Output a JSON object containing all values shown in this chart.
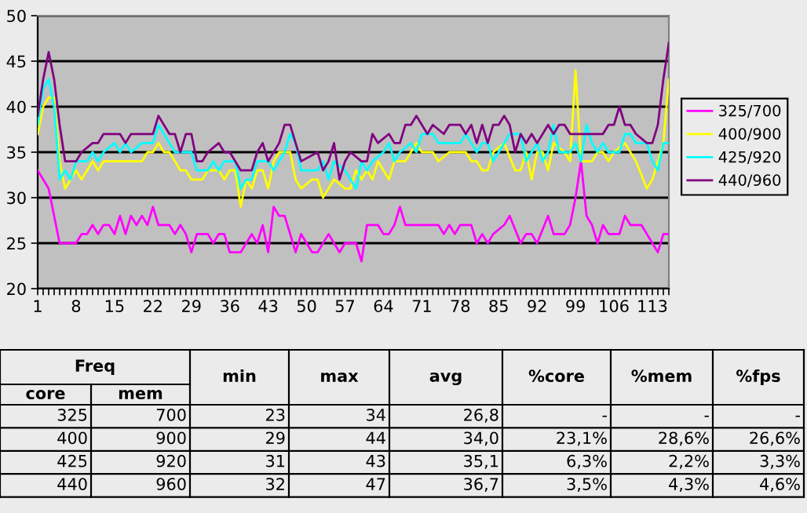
{
  "chart_data": {
    "type": "line",
    "xlim": [
      1,
      116
    ],
    "ylim": [
      20,
      50
    ],
    "yticks": [
      20,
      25,
      30,
      35,
      40,
      45,
      50
    ],
    "xticks": [
      1,
      {
        "value": 2,
        "label": null
      },
      {
        "value": 3,
        "label": null
      },
      {
        "value": 4,
        "label": null
      },
      {
        "value": 5,
        "label": null
      },
      {
        "value": 6,
        "label": null
      },
      {
        "value": 7,
        "label": null
      },
      8,
      {
        "value": 9,
        "label": null
      },
      {
        "value": 10,
        "label": null
      },
      {
        "value": 11,
        "label": null
      },
      {
        "value": 12,
        "label": null
      },
      {
        "value": 13,
        "label": null
      },
      {
        "value": 14,
        "label": null
      },
      15,
      {
        "value": 16,
        "label": null
      },
      {
        "value": 17,
        "label": null
      },
      {
        "value": 18,
        "label": null
      },
      {
        "value": 19,
        "label": null
      },
      {
        "value": 20,
        "label": null
      },
      {
        "value": 21,
        "label": null
      },
      22,
      {
        "value": 23,
        "label": null
      },
      {
        "value": 24,
        "label": null
      },
      {
        "value": 25,
        "label": null
      },
      {
        "value": 26,
        "label": null
      },
      {
        "value": 27,
        "label": null
      },
      {
        "value": 28,
        "label": null
      },
      29,
      {
        "value": 30,
        "label": null
      },
      {
        "value": 31,
        "label": null
      },
      {
        "value": 32,
        "label": null
      },
      {
        "value": 33,
        "label": null
      },
      {
        "value": 34,
        "label": null
      },
      {
        "value": 35,
        "label": null
      },
      36,
      {
        "value": 37,
        "label": null
      },
      {
        "value": 38,
        "label": null
      },
      {
        "value": 39,
        "label": null
      },
      {
        "value": 40,
        "label": null
      },
      {
        "value": 41,
        "label": null
      },
      {
        "value": 42,
        "label": null
      },
      43,
      {
        "value": 44,
        "label": null
      },
      {
        "value": 45,
        "label": null
      },
      {
        "value": 46,
        "label": null
      },
      {
        "value": 47,
        "label": null
      },
      {
        "value": 48,
        "label": null
      },
      {
        "value": 49,
        "label": null
      },
      50,
      {
        "value": 51,
        "label": null
      },
      {
        "value": 52,
        "label": null
      },
      {
        "value": 53,
        "label": null
      },
      {
        "value": 54,
        "label": null
      },
      {
        "value": 55,
        "label": null
      },
      {
        "value": 56,
        "label": null
      },
      57,
      {
        "value": 58,
        "label": null
      },
      {
        "value": 59,
        "label": null
      },
      {
        "value": 60,
        "label": null
      },
      {
        "value": 61,
        "label": null
      },
      {
        "value": 62,
        "label": null
      },
      {
        "value": 63,
        "label": null
      },
      64,
      {
        "value": 65,
        "label": null
      },
      {
        "value": 66,
        "label": null
      },
      {
        "value": 67,
        "label": null
      },
      {
        "value": 68,
        "label": null
      },
      {
        "value": 69,
        "label": null
      },
      {
        "value": 70,
        "label": null
      },
      71,
      {
        "value": 72,
        "label": null
      },
      {
        "value": 73,
        "label": null
      },
      {
        "value": 74,
        "label": null
      },
      {
        "value": 75,
        "label": null
      },
      {
        "value": 76,
        "label": null
      },
      {
        "value": 77,
        "label": null
      },
      78,
      {
        "value": 79,
        "label": null
      },
      {
        "value": 80,
        "label": null
      },
      {
        "value": 81,
        "label": null
      },
      {
        "value": 82,
        "label": null
      },
      {
        "value": 83,
        "label": null
      },
      {
        "value": 84,
        "label": null
      },
      85,
      {
        "value": 86,
        "label": null
      },
      {
        "value": 87,
        "label": null
      },
      {
        "value": 88,
        "label": null
      },
      {
        "value": 89,
        "label": null
      },
      {
        "value": 90,
        "label": null
      },
      {
        "value": 91,
        "label": null
      },
      92,
      {
        "value": 93,
        "label": null
      },
      {
        "value": 94,
        "label": null
      },
      {
        "value": 95,
        "label": null
      },
      {
        "value": 96,
        "label": null
      },
      {
        "value": 97,
        "label": null
      },
      {
        "value": 98,
        "label": null
      },
      99,
      {
        "value": 100,
        "label": null
      },
      {
        "value": 101,
        "label": null
      },
      {
        "value": 102,
        "label": null
      },
      {
        "value": 103,
        "label": null
      },
      {
        "value": 104,
        "label": null
      },
      {
        "value": 105,
        "label": null
      },
      106,
      {
        "value": 107,
        "label": null
      },
      {
        "value": 108,
        "label": null
      },
      {
        "value": 109,
        "label": null
      },
      {
        "value": 110,
        "label": null
      },
      {
        "value": 111,
        "label": null
      },
      {
        "value": 112,
        "label": null
      },
      113,
      {
        "value": 114,
        "label": null
      },
      {
        "value": 115,
        "label": null
      },
      {
        "value": 116,
        "label": null
      }
    ],
    "grid": "y",
    "legend": "right",
    "series": [
      {
        "name": "325/700",
        "color": "#ff00ff",
        "x": [
          1,
          2,
          3,
          4,
          5,
          8,
          9,
          10,
          11,
          12,
          13,
          14,
          15,
          16,
          17,
          18,
          19,
          20,
          21,
          22,
          23,
          25,
          26,
          27,
          28,
          29,
          30,
          32,
          33,
          34,
          35,
          36,
          38,
          39,
          40,
          41,
          42,
          43,
          44,
          45,
          46,
          47,
          48,
          49,
          50,
          51,
          52,
          54,
          55,
          56,
          57,
          59,
          60,
          61,
          63,
          64,
          65,
          66,
          67,
          68,
          70,
          74,
          75,
          76,
          77,
          78,
          80,
          81,
          82,
          83,
          84,
          86,
          87,
          89,
          90,
          91,
          92,
          94,
          95,
          97,
          98,
          99,
          100,
          101,
          102,
          103,
          104,
          105,
          107,
          108,
          109,
          111,
          112,
          113,
          114,
          115,
          116
        ],
        "values": [
          33,
          32,
          31,
          28,
          25,
          25,
          26,
          26,
          27,
          26,
          27,
          27,
          26,
          28,
          26,
          28,
          27,
          28,
          27,
          29,
          27,
          27,
          26,
          27,
          26,
          24,
          26,
          26,
          25,
          26,
          26,
          24,
          24,
          25,
          26,
          25,
          27,
          24,
          29,
          28,
          28,
          26,
          24,
          26,
          25,
          24,
          24,
          26,
          25,
          24,
          25,
          25,
          23,
          27,
          27,
          26,
          26,
          27,
          29,
          27,
          27,
          27,
          26,
          27,
          26,
          27,
          27,
          25,
          26,
          25,
          26,
          27,
          28,
          25,
          26,
          26,
          25,
          28,
          26,
          26,
          27,
          30,
          34,
          28,
          27,
          25,
          27,
          26,
          26,
          28,
          27,
          27,
          26,
          25,
          24,
          26,
          26
        ]
      },
      {
        "name": "400/900",
        "color": "#ffff00",
        "x": [
          1,
          2,
          3,
          4,
          5,
          6,
          7,
          8,
          9,
          10,
          11,
          12,
          13,
          20,
          21,
          22,
          23,
          24,
          25,
          26,
          27,
          28,
          29,
          31,
          32,
          34,
          35,
          36,
          37,
          38,
          39,
          40,
          41,
          42,
          43,
          44,
          45,
          46,
          47,
          48,
          49,
          51,
          52,
          53,
          54,
          55,
          57,
          58,
          59,
          60,
          61,
          62,
          63,
          65,
          66,
          68,
          69,
          70,
          71,
          73,
          74,
          76,
          79,
          80,
          81,
          82,
          83,
          84,
          86,
          88,
          89,
          90,
          91,
          92,
          93,
          94,
          95,
          97,
          98,
          99,
          100,
          102,
          103,
          104,
          105,
          106,
          108,
          109,
          110,
          112,
          113,
          114,
          115,
          116
        ],
        "values": [
          37,
          40,
          41,
          41,
          34,
          31,
          32,
          33,
          32,
          33,
          34,
          33,
          34,
          34,
          35,
          35,
          36,
          35,
          35,
          34,
          33,
          33,
          32,
          32,
          33,
          33,
          32,
          33,
          33,
          29,
          32,
          31,
          33,
          33,
          31,
          34,
          35,
          35,
          35,
          32,
          31,
          32,
          32,
          30,
          31,
          32,
          31,
          31,
          33,
          32,
          33,
          32,
          34,
          32,
          34,
          34,
          35,
          36,
          35,
          35,
          34,
          35,
          35,
          34,
          34,
          33,
          33,
          35,
          36,
          33,
          33,
          35,
          32,
          35,
          35,
          33,
          36,
          35,
          34,
          44,
          34,
          34,
          35,
          35,
          34,
          35,
          36,
          35,
          34,
          31,
          32,
          34,
          36,
          43
        ]
      },
      {
        "name": "425/920",
        "color": "#00ffff",
        "x": [
          1,
          2,
          3,
          4,
          5,
          6,
          7,
          8,
          10,
          11,
          12,
          13,
          15,
          16,
          17,
          18,
          20,
          22,
          23,
          24,
          25,
          26,
          29,
          30,
          32,
          33,
          34,
          35,
          37,
          38,
          39,
          40,
          41,
          43,
          44,
          45,
          46,
          47,
          48,
          49,
          51,
          52,
          53,
          54,
          55,
          57,
          59,
          60,
          61,
          62,
          64,
          65,
          66,
          67,
          69,
          70,
          71,
          72,
          73,
          74,
          78,
          79,
          80,
          81,
          82,
          83,
          84,
          85,
          87,
          89,
          90,
          91,
          92,
          93,
          94,
          95,
          96,
          98,
          99,
          100,
          101,
          102,
          103,
          104,
          105,
          107,
          108,
          109,
          110,
          112,
          113,
          114,
          115,
          116
        ],
        "values": [
          38,
          42,
          43,
          40,
          32,
          33,
          32,
          34,
          34,
          35,
          34,
          35,
          36,
          35,
          36,
          35,
          36,
          36,
          38,
          37,
          36,
          35,
          35,
          33,
          33,
          34,
          33,
          34,
          34,
          31,
          32,
          32,
          34,
          34,
          33,
          34,
          35,
          37,
          36,
          33,
          33,
          33,
          34,
          32,
          34,
          33,
          31,
          34,
          33,
          34,
          35,
          36,
          34,
          35,
          36,
          35,
          37,
          37,
          37,
          36,
          36,
          37,
          36,
          35,
          36,
          36,
          34,
          35,
          37,
          37,
          34,
          35,
          36,
          34,
          35,
          38,
          35,
          35,
          36,
          34,
          38,
          36,
          35,
          36,
          35,
          35,
          37,
          37,
          36,
          36,
          34,
          33,
          36,
          36
        ]
      },
      {
        "name": "440/960",
        "color": "#800080",
        "x": [
          1,
          2,
          3,
          4,
          5,
          6,
          8,
          9,
          11,
          12,
          13,
          16,
          17,
          18,
          22,
          23,
          25,
          26,
          27,
          28,
          29,
          30,
          31,
          32,
          34,
          35,
          36,
          37,
          38,
          40,
          41,
          42,
          43,
          45,
          46,
          47,
          48,
          49,
          52,
          53,
          54,
          55,
          56,
          57,
          58,
          60,
          61,
          62,
          63,
          65,
          66,
          67,
          68,
          69,
          70,
          72,
          73,
          75,
          76,
          78,
          79,
          80,
          81,
          82,
          83,
          84,
          85,
          86,
          87,
          88,
          89,
          90,
          91,
          92,
          94,
          95,
          96,
          97,
          98,
          100,
          104,
          105,
          106,
          107,
          108,
          109,
          110,
          112,
          113,
          114,
          115,
          116
        ],
        "values": [
          39,
          43,
          46,
          43,
          38,
          34,
          34,
          35,
          36,
          36,
          37,
          37,
          36,
          37,
          37,
          39,
          37,
          37,
          35,
          37,
          37,
          34,
          34,
          35,
          36,
          35,
          35,
          34,
          33,
          33,
          35,
          36,
          34,
          36,
          38,
          38,
          36,
          34,
          35,
          33,
          34,
          36,
          32,
          34,
          35,
          34,
          34,
          37,
          36,
          37,
          36,
          36,
          38,
          38,
          39,
          37,
          38,
          37,
          38,
          38,
          37,
          38,
          36,
          38,
          36,
          38,
          38,
          39,
          38,
          35,
          37,
          36,
          37,
          36,
          38,
          37,
          38,
          38,
          37,
          37,
          37,
          38,
          38,
          40,
          38,
          38,
          37,
          36,
          36,
          38,
          43,
          47
        ]
      }
    ],
    "annotations": [
      "Freq",
      "min",
      "max",
      "avg",
      "%core",
      "%mem",
      "%fps",
      "core",
      "mem",
      "325",
      "700",
      "23",
      "34",
      "26,8",
      "-",
      "-",
      "-",
      "400",
      "900",
      "29",
      "44",
      "34,0",
      "23,1%",
      "28,6%",
      "26,6%",
      "425",
      "920",
      "31",
      "43",
      "35,1",
      "6,3%",
      "2,2%",
      "3,3%",
      "440",
      "960",
      "32",
      "47",
      "36,7",
      "3,5%",
      "4,3%",
      "4,6%"
    ]
  }
}
